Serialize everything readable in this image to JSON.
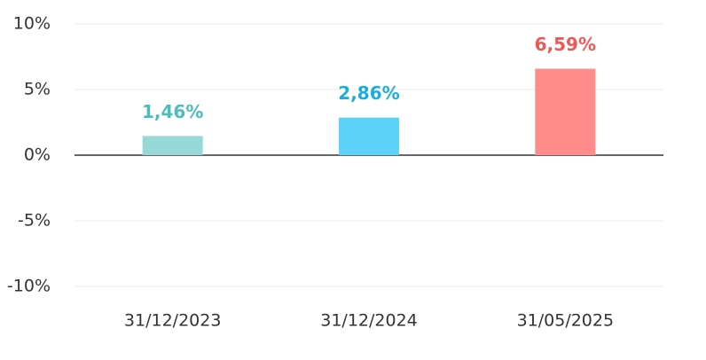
{
  "chart_data": {
    "type": "bar",
    "categories": [
      "31/12/2023",
      "31/12/2024",
      "31/05/2025"
    ],
    "values": [
      1.46,
      2.86,
      6.59
    ],
    "value_labels": [
      "1,46%",
      "2,86%",
      "6,59%"
    ],
    "colors": [
      "#97d9d9",
      "#5cd2fb",
      "#ff8b8a"
    ],
    "label_colors": [
      "#4fbcbc",
      "#1aaee0",
      "#eb5a5a"
    ],
    "ylim": [
      -10,
      10
    ],
    "yticks": [
      {
        "value": -10,
        "label": "-10%"
      },
      {
        "value": -5,
        "label": "-5%"
      },
      {
        "value": 0,
        "label": "0%"
      },
      {
        "value": 5,
        "label": "5%"
      },
      {
        "value": 10,
        "label": "10%"
      }
    ],
    "grid": true
  }
}
